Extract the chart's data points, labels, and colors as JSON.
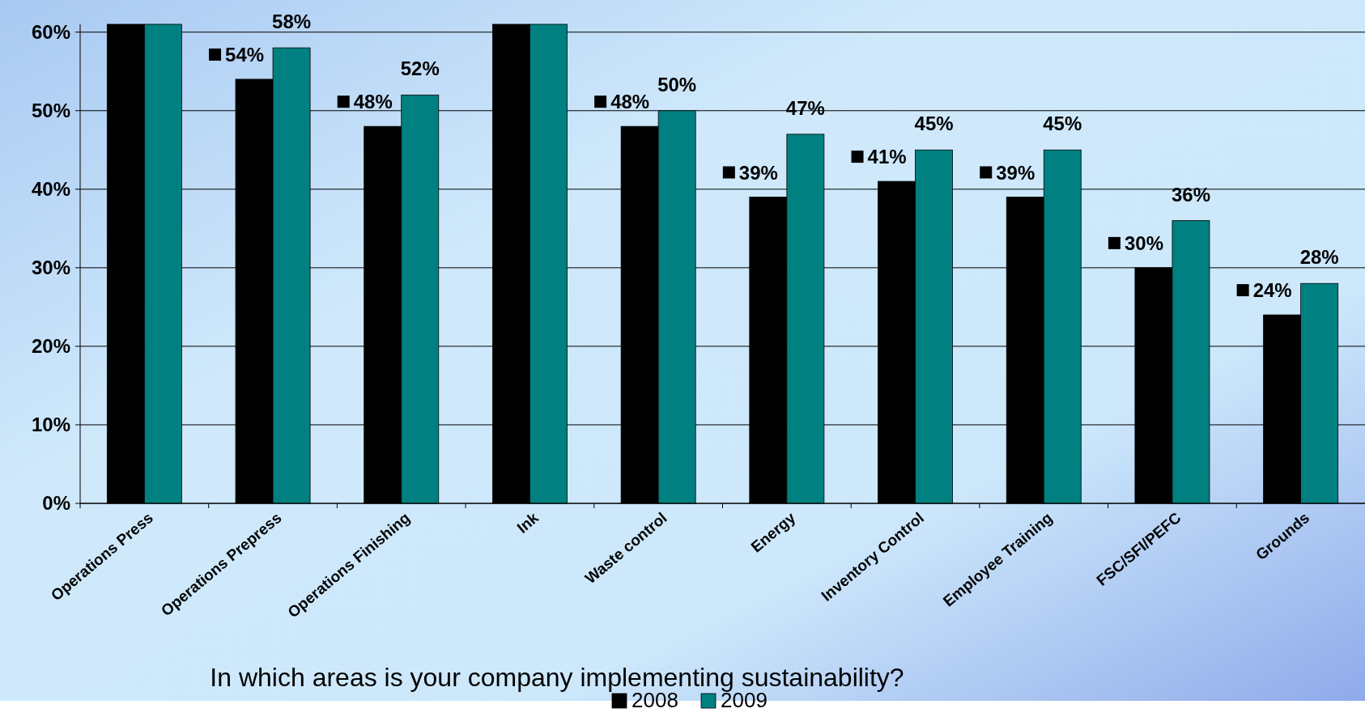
{
  "chart_data": {
    "type": "bar",
    "title": "In which areas is your company implementing sustainability?",
    "categories": [
      "Operations Press",
      "Operations Prepress",
      "Operations Finishing",
      "Ink",
      "Waste control",
      "Energy",
      "Inventory Control",
      "Employee Training",
      "FSC/SFI/PEFC",
      "Grounds"
    ],
    "series": [
      {
        "name": "2008",
        "color": "#000000",
        "values": [
          61,
          54,
          48,
          61,
          48,
          39,
          41,
          39,
          30,
          24
        ],
        "value_labels": [
          null,
          "54%",
          "48%",
          null,
          "48%",
          "39%",
          "41%",
          "39%",
          "30%",
          "24%"
        ]
      },
      {
        "name": "2009",
        "color": "#008080",
        "values": [
          61,
          58,
          52,
          61,
          50,
          47,
          45,
          45,
          36,
          28
        ],
        "value_labels": [
          null,
          "58%",
          "52%",
          null,
          "50%",
          "47%",
          "45%",
          "45%",
          "36%",
          "28%"
        ]
      }
    ],
    "ylim": [
      0,
      61
    ],
    "yticks": [
      {
        "value": 0,
        "label": "0%"
      },
      {
        "value": 10,
        "label": "10%"
      },
      {
        "value": 20,
        "label": "20%"
      },
      {
        "value": 30,
        "label": "30%"
      },
      {
        "value": 40,
        "label": "40%"
      },
      {
        "value": 50,
        "label": "50%"
      },
      {
        "value": 60,
        "label": "60%"
      }
    ],
    "grid": "y",
    "legend": "bottom"
  }
}
